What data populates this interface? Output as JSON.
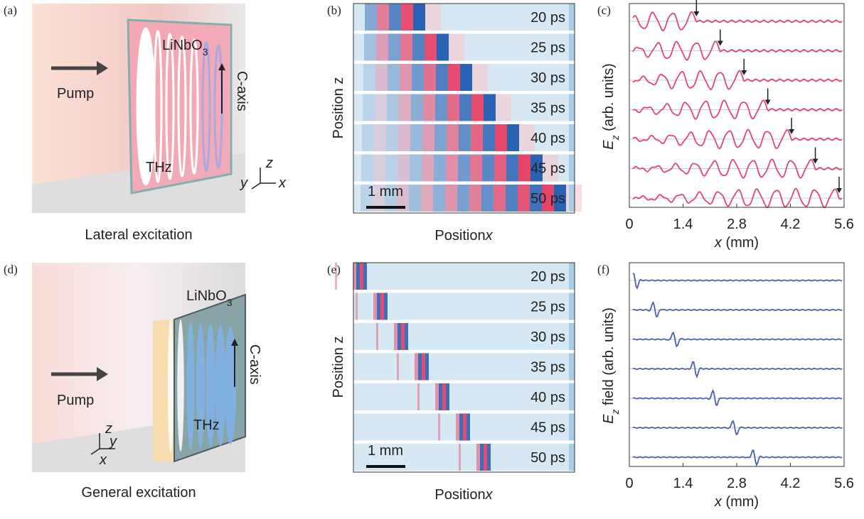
{
  "panels": [
    {
      "label": "(a)",
      "pump": "Pump",
      "crystal": "LiNbO",
      "crystal_sub": "3",
      "axis": "C-axis",
      "wave": "THz",
      "axes": [
        "z",
        "y",
        "x"
      ],
      "caption": "Lateral excitation"
    },
    {
      "label": "(b)",
      "ylabel": "Position z",
      "xlabel": "Position",
      "xlabel_symbol": "x",
      "times": [
        "20 ps",
        "25 ps",
        "30 ps",
        "35 ps",
        "40 ps",
        "45 ps",
        "50 ps"
      ],
      "scale": "1 mm"
    },
    {
      "label": "(c)",
      "ylabel_symbol": "E",
      "ylabel_sub": "z",
      "ylabel_rest": " (arb. units)",
      "xlabel_symbol": "x",
      "xlabel_rest": " (mm)",
      "xlim": [
        0,
        5.6
      ],
      "xticks": [
        0,
        1.4,
        2.8,
        4.2,
        5.6
      ]
    },
    {
      "label": "(d)",
      "pump": "Pump",
      "crystal": "LiNbO",
      "crystal_sub": "3",
      "axis": "C-axis",
      "wave": "THz",
      "axes": [
        "z",
        "y",
        "x"
      ],
      "caption": "General excitation"
    },
    {
      "label": "(e)",
      "ylabel": "Position z",
      "xlabel": "Position",
      "xlabel_symbol": "x",
      "times": [
        "20 ps",
        "25 ps",
        "30 ps",
        "35 ps",
        "40 ps",
        "45 ps",
        "50 ps"
      ],
      "scale": "1 mm"
    },
    {
      "label": "(f)",
      "ylabel_symbol": "E",
      "ylabel_sub": "z",
      "ylabel_rest": " field (arb. units)",
      "xlabel_symbol": "x",
      "xlabel_rest": " (mm)",
      "xlim": [
        0,
        5.6
      ],
      "xticks": [
        0,
        1.4,
        2.8,
        4.2,
        5.6
      ]
    }
  ]
}
